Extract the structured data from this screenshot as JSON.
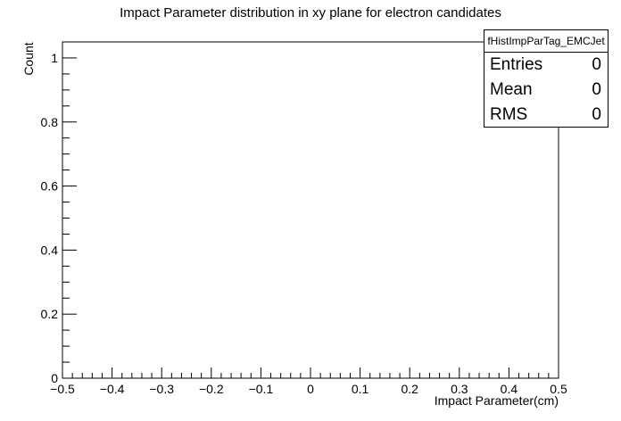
{
  "chart_data": {
    "type": "bar",
    "title": "Impact Parameter distribution in xy plane for electron candidates",
    "xlabel": "Impact Parameter(cm)",
    "ylabel": "Count",
    "xlim": [
      -0.5,
      0.5
    ],
    "ylim": [
      0,
      1.05
    ],
    "x_ticks": [
      "−0.5",
      "−0.4",
      "−0.3",
      "−0.2",
      "−0.1",
      "0",
      "0.1",
      "0.2",
      "0.3",
      "0.4",
      "0.5"
    ],
    "y_ticks": [
      "0",
      "0.2",
      "0.4",
      "0.6",
      "0.8",
      "1"
    ],
    "series": [],
    "grid": false,
    "legend": "none",
    "stats": {
      "name": "fHistImpParTag_EMCJet",
      "rows": [
        {
          "label": "Entries",
          "value": "0"
        },
        {
          "label": "Mean",
          "value": "0"
        },
        {
          "label": "RMS",
          "value": "0"
        }
      ]
    }
  }
}
